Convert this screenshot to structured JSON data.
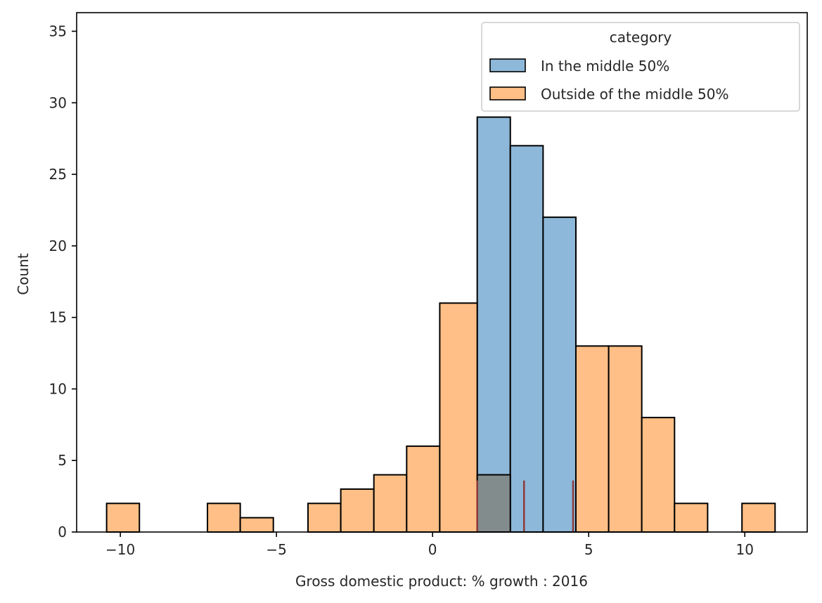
{
  "chart_data": {
    "type": "bar",
    "subtype": "histogram",
    "xlabel": "Gross domestic product: % growth : 2016",
    "ylabel": "Count",
    "xlim": [
      -11.4,
      12.0
    ],
    "ylim": [
      0,
      36.3
    ],
    "xticks": [
      -10,
      -5,
      0,
      5,
      10
    ],
    "xtick_labels": [
      "−10",
      "−5",
      "0",
      "5",
      "10"
    ],
    "yticks": [
      0,
      5,
      10,
      15,
      20,
      25,
      30,
      35
    ],
    "ytick_labels": [
      "0",
      "5",
      "10",
      "15",
      "20",
      "25",
      "30",
      "35"
    ],
    "grid": false,
    "legend": {
      "title": "category",
      "position": "top-right"
    },
    "series": [
      {
        "name": "In the middle 50%",
        "color": "#8db8d9",
        "bins": [
          {
            "x0": 1.43,
            "x1": 2.49,
            "count": 29
          },
          {
            "x0": 2.49,
            "x1": 3.54,
            "count": 27
          },
          {
            "x0": 3.54,
            "x1": 4.59,
            "count": 22
          }
        ]
      },
      {
        "name": "Outside of the middle 50%",
        "color": "#ffbf86",
        "bins": [
          {
            "x0": -10.44,
            "x1": -9.39,
            "count": 2
          },
          {
            "x0": -7.21,
            "x1": -6.16,
            "count": 2
          },
          {
            "x0": -6.16,
            "x1": -5.1,
            "count": 1
          },
          {
            "x0": -3.99,
            "x1": -2.94,
            "count": 2
          },
          {
            "x0": -2.94,
            "x1": -1.88,
            "count": 3
          },
          {
            "x0": -1.88,
            "x1": -0.83,
            "count": 4
          },
          {
            "x0": -0.83,
            "x1": 0.23,
            "count": 6
          },
          {
            "x0": 0.23,
            "x1": 1.43,
            "count": 16
          },
          {
            "x0": 1.43,
            "x1": 2.49,
            "count": 4
          },
          {
            "x0": 4.59,
            "x1": 5.64,
            "count": 13
          },
          {
            "x0": 5.64,
            "x1": 6.7,
            "count": 13
          },
          {
            "x0": 6.7,
            "x1": 7.75,
            "count": 8
          },
          {
            "x0": 7.75,
            "x1": 8.81,
            "count": 2
          },
          {
            "x0": 9.91,
            "x1": 10.97,
            "count": 2
          }
        ]
      }
    ],
    "overlap_color": "#828c8c",
    "reference_lines": {
      "color": "#8b3a3a",
      "height": 3.6,
      "x": [
        1.43,
        2.93,
        4.5
      ]
    }
  }
}
